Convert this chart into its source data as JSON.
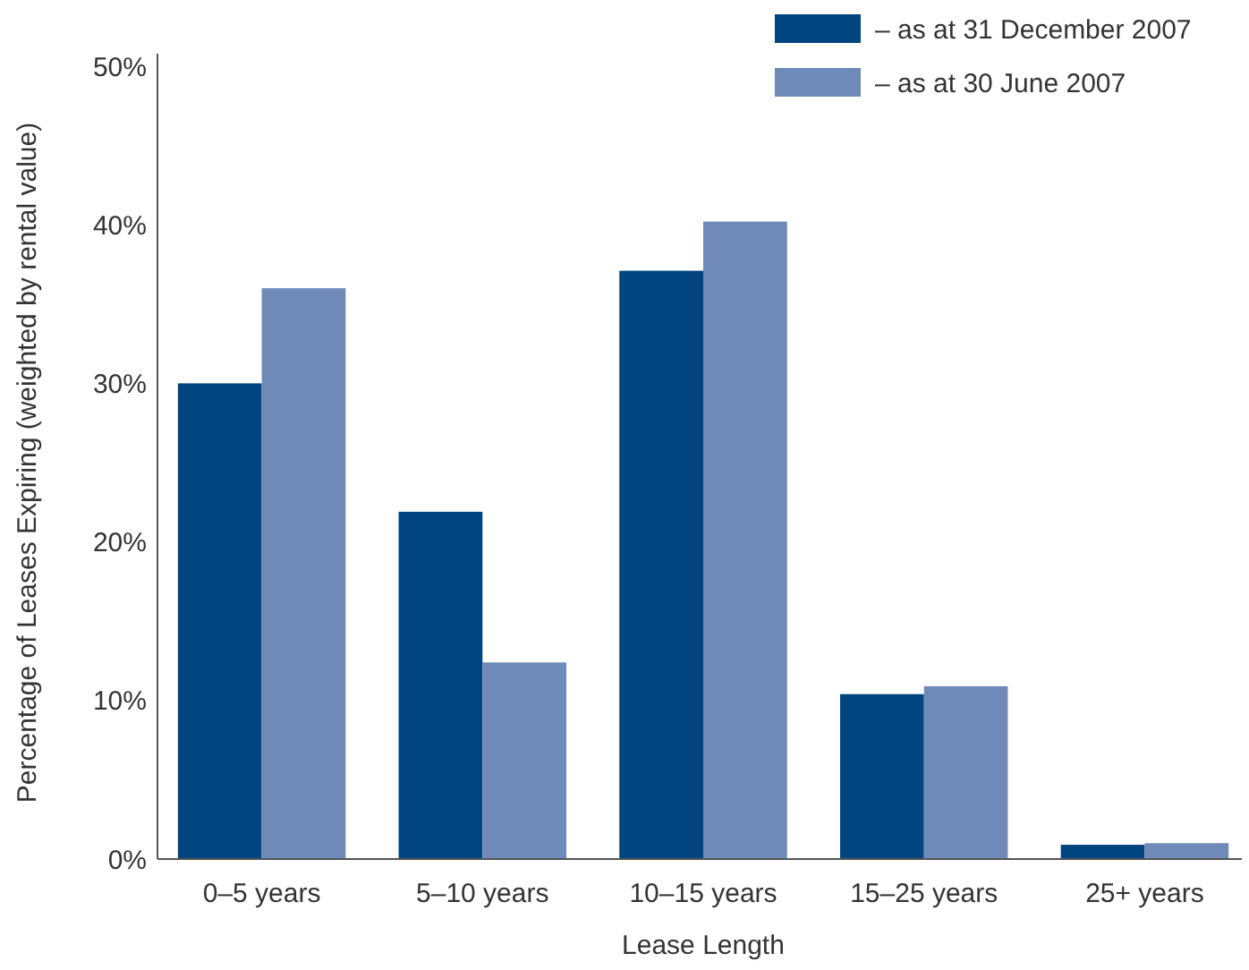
{
  "chart_data": {
    "type": "bar",
    "xlabel": "Lease Length",
    "ylabel": "Percentage of Leases Expiring (weighted by rental value)",
    "categories": [
      "0–5 years",
      "5–10 years",
      "10–15 years",
      "15–25 years",
      "25+ years"
    ],
    "series": [
      {
        "name": "–  as at 31 December 2007",
        "color": "#00457f",
        "values": [
          30.0,
          21.9,
          37.1,
          10.4,
          0.9
        ]
      },
      {
        "name": "–  as at 30 June 2007",
        "color": "#6f8ab8",
        "values": [
          36.0,
          12.4,
          40.2,
          10.9,
          1.0
        ]
      }
    ],
    "ylim": [
      0,
      50
    ],
    "yticks": [
      {
        "value": 0,
        "label": "0%"
      },
      {
        "value": 10,
        "label": "10%"
      },
      {
        "value": 20,
        "label": "20%"
      },
      {
        "value": 30,
        "label": "30%"
      },
      {
        "value": 40,
        "label": "40%"
      },
      {
        "value": 50,
        "label": "50%"
      }
    ],
    "grid": false,
    "legend": "top right"
  }
}
